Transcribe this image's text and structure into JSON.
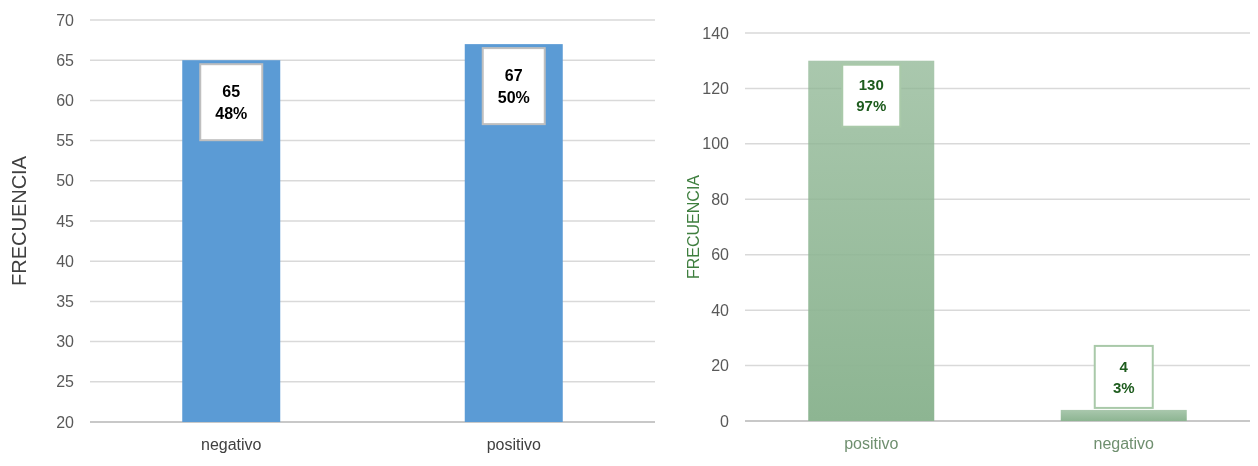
{
  "chart_data": [
    {
      "type": "bar",
      "ylabel": "FRECUENCIA",
      "categories": [
        "negativo",
        "positivo"
      ],
      "values": [
        65,
        67
      ],
      "color": "#5b9bd5",
      "value_labels": [
        "65\n48%",
        "67\n50%"
      ],
      "ylim": [
        20,
        70
      ],
      "yticks": [
        20,
        25,
        30,
        35,
        40,
        45,
        50,
        55,
        60,
        65,
        70
      ],
      "grid": "y"
    },
    {
      "type": "bar",
      "ylabel": "FRECUENCIA",
      "categories": [
        "positivo",
        "negativo"
      ],
      "values": [
        130,
        4
      ],
      "color": "#8db592",
      "value_labels": [
        "130\n97%",
        "4\n3%"
      ],
      "ylim": [
        0,
        140
      ],
      "yticks": [
        0,
        20,
        40,
        60,
        80,
        100,
        120,
        140
      ],
      "grid": "y"
    }
  ]
}
